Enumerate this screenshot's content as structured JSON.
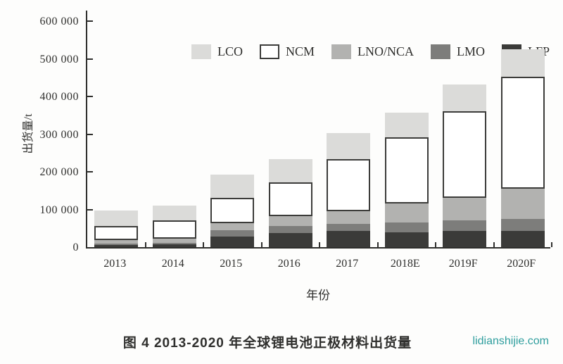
{
  "chart_data": {
    "type": "bar",
    "stacked": true,
    "title": "图 4 2013-2020 年全球锂电池正极材料出货量",
    "ylabel": "出货量/t",
    "xlabel": "年份",
    "ylim": [
      0,
      600000
    ],
    "ytick_step": 100000,
    "ytick_labels": [
      "0",
      "100 000",
      "200 000",
      "300 000",
      "400 000",
      "500 000",
      "600 000"
    ],
    "categories": [
      "2013",
      "2014",
      "2015",
      "2016",
      "2017",
      "2018E",
      "2019F",
      "2020F"
    ],
    "series": [
      {
        "name": "LFP",
        "color": "#3b3b39",
        "values": [
          5000,
          7000,
          28000,
          38000,
          43000,
          40000,
          43000,
          43000
        ]
      },
      {
        "name": "LMO",
        "color": "#7d7d7b",
        "values": [
          5000,
          5000,
          16000,
          18000,
          19000,
          25000,
          28000,
          31000
        ]
      },
      {
        "name": "LNO/NCA",
        "color": "#b2b2b0",
        "values": [
          9000,
          10000,
          19000,
          26000,
          34000,
          50000,
          59000,
          81000
        ]
      },
      {
        "name": "NCM",
        "color": "#ffffff",
        "border": "#3c3c3a",
        "values": [
          38000,
          50000,
          68000,
          91000,
          138000,
          177000,
          230000,
          298000
        ]
      },
      {
        "name": "LCO",
        "color": "#dbdbd9",
        "values": [
          40000,
          38000,
          62000,
          60000,
          68000,
          65000,
          71000,
          73000
        ]
      }
    ],
    "legend_order": [
      "LCO",
      "NCM",
      "LNO/NCA",
      "LMO",
      "LFP"
    ],
    "legend_position": "top-inside",
    "grid": false,
    "axis_color": "#2f2f2d"
  },
  "caption": {
    "text": "图 4 2013-2020 年全球锂电池正极材料出货量"
  },
  "watermark": {
    "text": "lidianshijie.com",
    "color": "#2f9e9e"
  }
}
